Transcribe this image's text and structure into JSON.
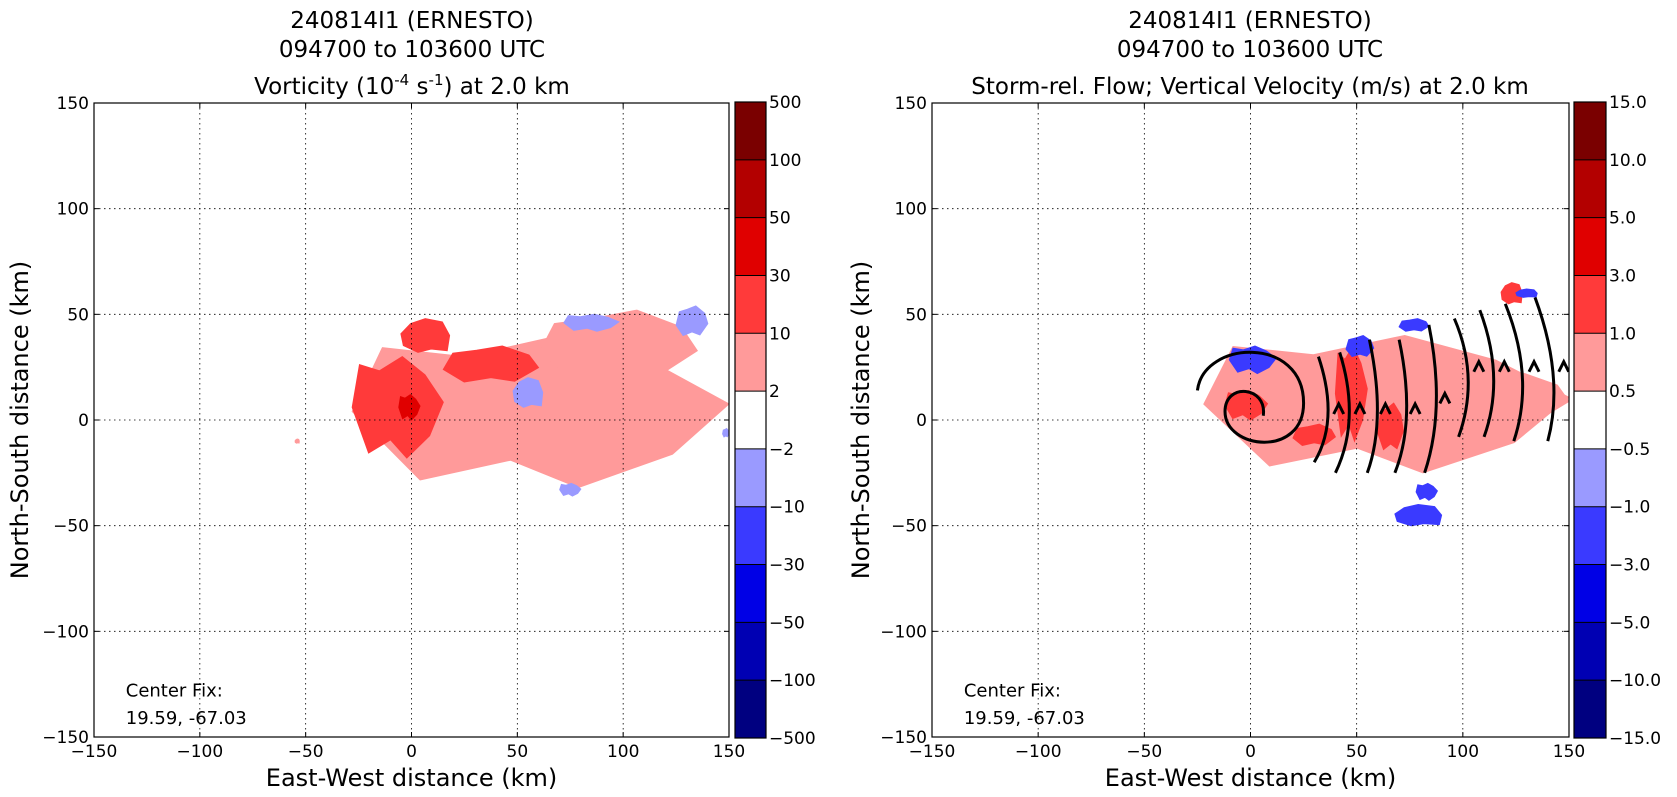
{
  "chart_data": [
    {
      "type": "heatmap",
      "title_lines": [
        "240814I1 (ERNESTO)",
        "094700 to 103600 UTC"
      ],
      "subtitle": {
        "pre": "Vorticity (10",
        "sup1": "-4",
        "mid": " s",
        "sup2": "-1",
        "post": ") at 2.0 km"
      },
      "xlabel": "East-West distance (km)",
      "ylabel": "North-South distance (km)",
      "xlim": [
        -150,
        150
      ],
      "ylim": [
        -150,
        150
      ],
      "xticks": [
        -150,
        -100,
        -50,
        0,
        50,
        100,
        150
      ],
      "yticks": [
        -150,
        -100,
        -50,
        0,
        50,
        100,
        150
      ],
      "xtick_labels": [
        "−150",
        "−100",
        "−50",
        "0",
        "50",
        "100",
        "150"
      ],
      "ytick_labels": [
        "−150",
        "−100",
        "−50",
        "0",
        "50",
        "100",
        "150"
      ],
      "grid": true,
      "annotation": [
        "Center Fix:",
        "19.59, -67.03"
      ],
      "colorbar": {
        "levels": [
          "500",
          "100",
          "50",
          "30",
          "10",
          "2",
          "−2",
          "−10",
          "−30",
          "−50",
          "−100",
          "−500"
        ],
        "colors": [
          "#7a0000",
          "#b30000",
          "#e00000",
          "#ff3a3a",
          "#ff9a9a",
          "#ffffff",
          "#9a9aff",
          "#3a3aff",
          "#0000e6",
          "#0000b3",
          "#000080"
        ]
      },
      "fields": {
        "light_red": [
          {
            "x": [
              -28,
              150
            ],
            "y": [
              -32,
              40
            ]
          },
          {
            "x": [
              60,
              135
            ],
            "y": [
              20,
              52
            ]
          },
          {
            "x": [
              -55,
              -53
            ],
            "y": [
              -9,
              -11
            ]
          }
        ],
        "medium_red": [
          {
            "x": [
              -28,
              15
            ],
            "y": [
              -18,
              30
            ]
          },
          {
            "x": [
              15,
              60
            ],
            "y": [
              18,
              35
            ]
          },
          {
            "x": [
              -5,
              18
            ],
            "y": [
              32,
              48
            ]
          }
        ],
        "dark_red": [
          {
            "x": [
              -6,
              4
            ],
            "y": [
              0,
              12
            ]
          }
        ],
        "light_blue": [
          {
            "x": [
              72,
              98
            ],
            "y": [
              42,
              50
            ]
          },
          {
            "x": [
              125,
              140
            ],
            "y": [
              40,
              54
            ]
          },
          {
            "x": [
              48,
              62
            ],
            "y": [
              6,
              20
            ]
          },
          {
            "x": [
              70,
              80
            ],
            "y": [
              -30,
              -36
            ]
          },
          {
            "x": [
              147,
              150
            ],
            "y": [
              -4,
              -8
            ]
          }
        ]
      }
    },
    {
      "type": "heatmap",
      "title_lines": [
        "240814I1 (ERNESTO)",
        "094700 to 103600 UTC"
      ],
      "subtitle": {
        "text": "Storm-rel. Flow; Vertical Velocity (m/s) at 2.0 km"
      },
      "xlabel": "East-West distance (km)",
      "ylabel": "North-South distance (km)",
      "xlim": [
        -150,
        150
      ],
      "ylim": [
        -150,
        150
      ],
      "xticks": [
        -150,
        -100,
        -50,
        0,
        50,
        100,
        150
      ],
      "yticks": [
        -150,
        -100,
        -50,
        0,
        50,
        100,
        150
      ],
      "xtick_labels": [
        "−150",
        "−100",
        "−50",
        "0",
        "50",
        "100",
        "150"
      ],
      "ytick_labels": [
        "−150",
        "−100",
        "−50",
        "0",
        "50",
        "100",
        "150"
      ],
      "grid": true,
      "annotation": [
        "Center Fix:",
        "19.59, -67.03"
      ],
      "colorbar": {
        "levels": [
          "15.0",
          "10.0",
          "5.0",
          "3.0",
          "1.0",
          "0.5",
          "−0.5",
          "−1.0",
          "−3.0",
          "−5.0",
          "−10.0",
          "−15.0"
        ],
        "colors": [
          "#7a0000",
          "#b30000",
          "#e00000",
          "#ff3a3a",
          "#ff9a9a",
          "#ffffff",
          "#9a9aff",
          "#3a3aff",
          "#0000e6",
          "#0000b3",
          "#000080"
        ]
      },
      "fields": {
        "light_red": [
          {
            "x": [
              -22,
              150
            ],
            "y": [
              -25,
              40
            ]
          },
          {
            "x": [
              95,
              150
            ],
            "y": [
              0,
              22
            ]
          }
        ],
        "medium_red": [
          {
            "x": [
              40,
              55
            ],
            "y": [
              -10,
              35
            ]
          },
          {
            "x": [
              60,
              72
            ],
            "y": [
              -14,
              8
            ]
          },
          {
            "x": [
              118,
              128
            ],
            "y": [
              55,
              65
            ]
          },
          {
            "x": [
              -12,
              8
            ],
            "y": [
              0,
              14
            ]
          },
          {
            "x": [
              20,
              40
            ],
            "y": [
              -12,
              -2
            ]
          }
        ],
        "blue": [
          {
            "x": [
              -10,
              12
            ],
            "y": [
              22,
              35
            ]
          },
          {
            "x": [
              45,
              58
            ],
            "y": [
              30,
              40
            ]
          },
          {
            "x": [
              68,
              90
            ],
            "y": [
              -40,
              -50
            ]
          },
          {
            "x": [
              78,
              88
            ],
            "y": [
              -30,
              -38
            ]
          },
          {
            "x": [
              70,
              84
            ],
            "y": [
              42,
              48
            ]
          },
          {
            "x": [
              125,
              135
            ],
            "y": [
              58,
              62
            ]
          }
        ]
      }
    }
  ]
}
